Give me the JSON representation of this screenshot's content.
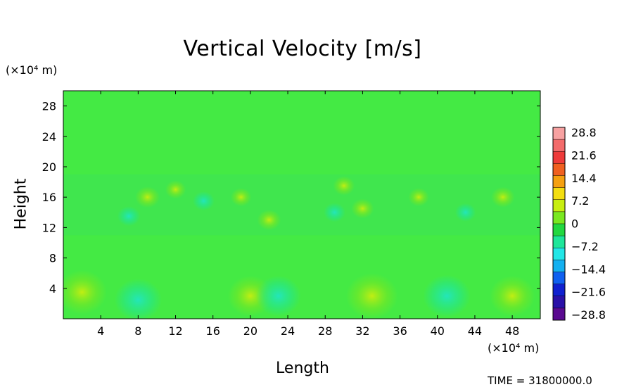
{
  "chart_data": {
    "type": "heatmap",
    "title": "Vertical Velocity [m/s]",
    "xlabel": "Length",
    "ylabel": "Height",
    "x_unit": "(×10⁴ m)",
    "y_unit": "(×10⁴ m)",
    "xlim": [
      0,
      51
    ],
    "ylim": [
      0,
      30
    ],
    "x_ticks": [
      4,
      8,
      12,
      16,
      20,
      24,
      28,
      32,
      36,
      40,
      44,
      48
    ],
    "y_ticks": [
      4,
      8,
      12,
      16,
      20,
      24,
      28
    ],
    "colorbar": {
      "labels": [
        "28.8",
        "21.6",
        "14.4",
        "7.2",
        "0",
        "−7.2",
        "−14.4",
        "−21.6",
        "−28.8"
      ],
      "vmin": -28.8,
      "vmax": 28.8,
      "colors": [
        "#f7a1a1",
        "#f36b6b",
        "#ee3a3a",
        "#f06020",
        "#f5a010",
        "#f3de10",
        "#c8ee10",
        "#7ae820",
        "#22d840",
        "#1ee69a",
        "#22e6e6",
        "#14b0f0",
        "#1060f0",
        "#1020d0",
        "#2a10a8",
        "#5a0a90"
      ]
    },
    "time_label": "TIME = 31800000.0",
    "features": [
      {
        "x": 2,
        "y": 3.5,
        "value": 6
      },
      {
        "x": 8,
        "y": 2.5,
        "value": -5
      },
      {
        "x": 20,
        "y": 3,
        "value": 4
      },
      {
        "x": 23,
        "y": 3,
        "value": -4
      },
      {
        "x": 33,
        "y": 3,
        "value": 7
      },
      {
        "x": 41,
        "y": 3,
        "value": -5
      },
      {
        "x": 48,
        "y": 3,
        "value": 4
      },
      {
        "x": 9,
        "y": 16,
        "value": 9
      },
      {
        "x": 15,
        "y": 15.5,
        "value": -6
      },
      {
        "x": 22,
        "y": 13,
        "value": 8
      },
      {
        "x": 32,
        "y": 14.5,
        "value": 7
      },
      {
        "x": 47,
        "y": 16,
        "value": 8
      },
      {
        "x": 7,
        "y": 13.5,
        "value": -7
      },
      {
        "x": 12,
        "y": 17,
        "value": 5
      },
      {
        "x": 19,
        "y": 16,
        "value": 5
      },
      {
        "x": 29,
        "y": 14,
        "value": -6
      },
      {
        "x": 30,
        "y": 17.5,
        "value": 6
      },
      {
        "x": 38,
        "y": 16,
        "value": 5
      },
      {
        "x": 43,
        "y": 14,
        "value": -5
      }
    ]
  }
}
